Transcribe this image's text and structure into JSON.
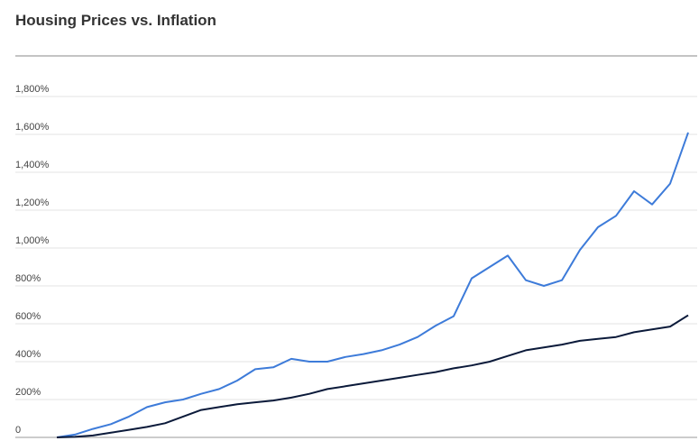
{
  "chart_data": {
    "type": "line",
    "title": "Housing Prices vs. Inflation",
    "ylim": [
      0,
      1800
    ],
    "yticks": [
      0,
      {
        "value": 200,
        "label": "200%"
      },
      {
        "value": 400,
        "label": "400%"
      },
      {
        "value": 600,
        "label": "600%"
      },
      {
        "value": 800,
        "label": "800%"
      },
      {
        "value": 1000,
        "label": "1,000%"
      },
      {
        "value": 1200,
        "label": "1,200%"
      },
      {
        "value": 1400,
        "label": "1,400%"
      },
      {
        "value": 1600,
        "label": "1,600%"
      },
      {
        "value": 1800,
        "label": "1,800%"
      }
    ],
    "grid": true,
    "series": [
      {
        "color": "#3d7bd9",
        "values": [
          0,
          15,
          45,
          70,
          110,
          160,
          185,
          200,
          230,
          255,
          300,
          360,
          370,
          415,
          400,
          400,
          425,
          440,
          460,
          490,
          530,
          590,
          640,
          840,
          900,
          960,
          830,
          800,
          830,
          990,
          1110,
          1170,
          1300,
          1230,
          1340,
          1610
        ]
      },
      {
        "color": "#0b1a3a",
        "values": [
          0,
          3,
          10,
          25,
          40,
          55,
          75,
          110,
          145,
          160,
          175,
          185,
          195,
          210,
          230,
          255,
          270,
          285,
          300,
          315,
          330,
          345,
          365,
          380,
          400,
          430,
          460,
          475,
          490,
          510,
          520,
          530,
          555,
          570,
          585,
          645
        ]
      }
    ]
  }
}
